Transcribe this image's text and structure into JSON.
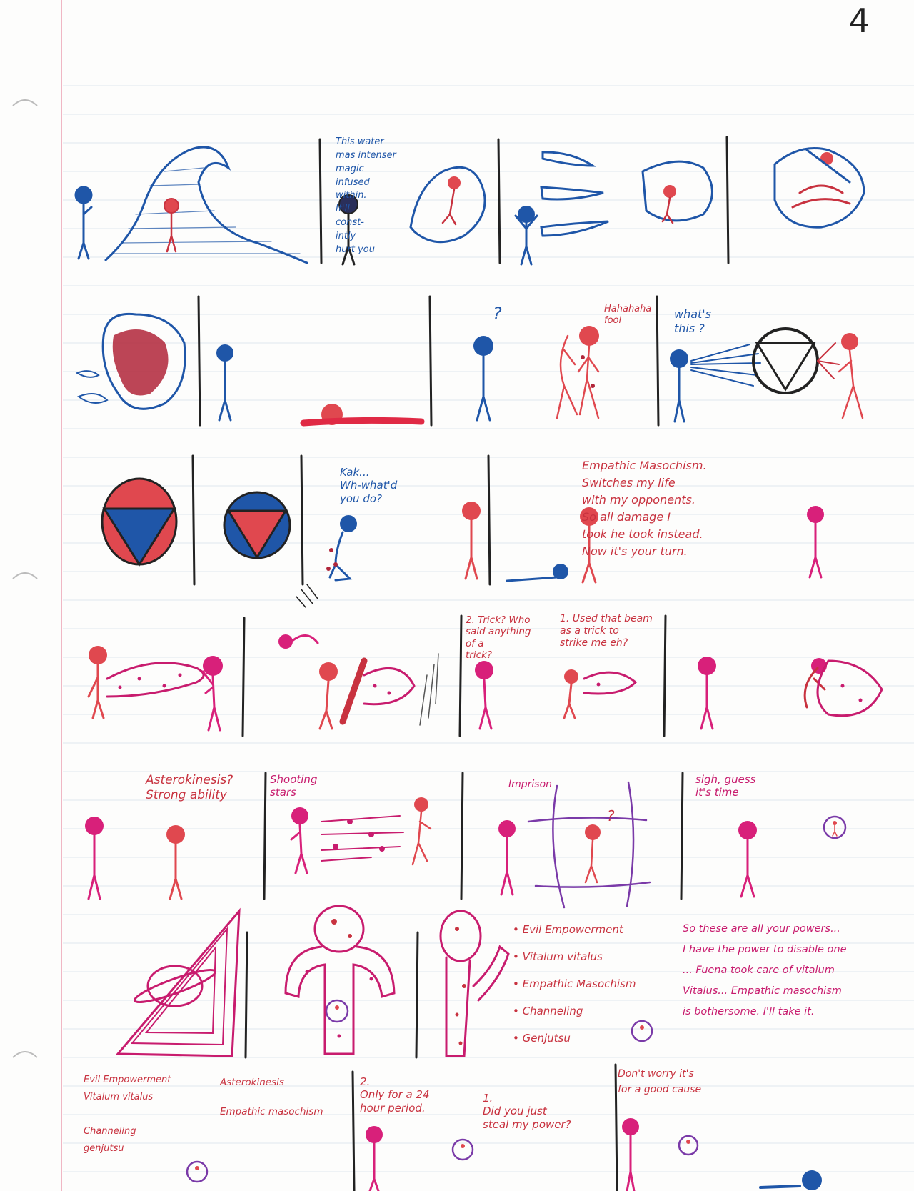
{
  "page_number": "4",
  "colors": {
    "blue": "#1f56a8",
    "red": "#c8323f",
    "pink": "#c81c6e",
    "violet": "#7a3aa8",
    "ink": "#222222"
  },
  "row1": {
    "water_note": "This water\nmas intenser\nmagic\ninfused\nwithin.\nIt'll\nconst-\nintly\nhurt you"
  },
  "row2": {
    "question_mark": "?",
    "laugh": "Hahahaha\nfool",
    "whats_this": "what's\nthis ?"
  },
  "row3": {
    "kak": "Kak...\nWh-what'd\nyou do?",
    "explain": "Empathic Masochism.\nSwitches my life\nwith my opponents.\nSo all damage I\ntook he took instead.\nNow it's your turn."
  },
  "row4": {
    "trick": "2. Trick? Who\nsaid anything\nof a\ntrick?",
    "beam": "1. Used that beam\nas a trick to\nstrike me eh?"
  },
  "row5": {
    "asterokinesis": "Asterokinesis?\nStrong ability",
    "shooting_stars": "Shooting\nstars",
    "imprison": "Imprison",
    "imprison_q": "?",
    "sigh": "sigh, guess\nit's time"
  },
  "row6": {
    "powers_list": [
      "Evil Empowerment",
      "Vitalum vitalus",
      "Empathic Masochism",
      "Channeling",
      "Genjutsu"
    ],
    "speech": "So these are all your powers...\nI have the power to disable one\n... Fuena took care of vitalum\nVitalus... Empathic masochism\nis bothersome. I'll take it."
  },
  "row7": {
    "list_a": "Evil Empowerment\nVitalum vitalus\n\nChanneling\ngenjutsu",
    "list_b": "Asterokinesis\n\nEmpathic masochism",
    "only": "2.\nOnly for a 24\nhour period.",
    "steal": "1.\nDid you just\nsteal my power?",
    "dont_worry": "Don't worry it's\nfor a good cause"
  }
}
